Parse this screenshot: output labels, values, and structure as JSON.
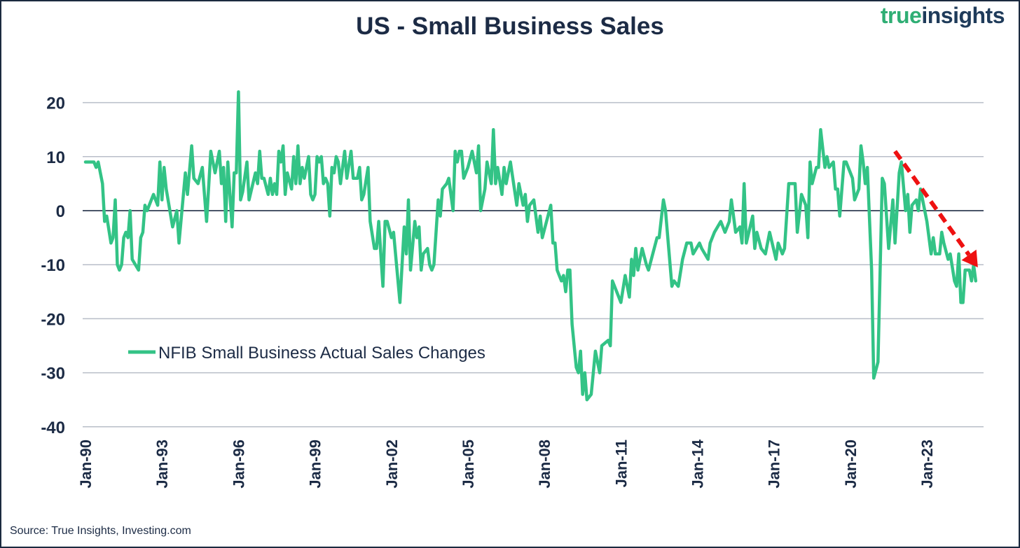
{
  "header": {
    "title": "US - Small Business Sales",
    "logo_part1": "true",
    "logo_part2": "insights"
  },
  "source": "Source: True Insights, Investing.com",
  "colors": {
    "line": "#33c386",
    "text": "#1c2b45",
    "grid": "#b8bec8",
    "zero": "#4a5568",
    "arrow": "#ee1111"
  },
  "chart_data": {
    "type": "line",
    "title": "US - Small Business Sales",
    "xlabel": "",
    "ylabel": "",
    "ylim": [
      -40,
      25
    ],
    "yticks": [
      20,
      10,
      0,
      -10,
      -20,
      -30,
      -40
    ],
    "ytick_labels": [
      "20",
      "10",
      "0",
      "-10",
      "-20",
      "-30",
      "-40"
    ],
    "x_unit": "months since Jan-1990",
    "xlim": [
      0,
      419
    ],
    "xticks": [
      0,
      36,
      72,
      108,
      144,
      180,
      216,
      252,
      288,
      324,
      360,
      396
    ],
    "xtick_labels": [
      "Jan-90",
      "Jan-93",
      "Jan-96",
      "Jan-99",
      "Jan-02",
      "Jan-05",
      "Jan-08",
      "Jan-11",
      "Jan-14",
      "Jan-17",
      "Jan-20",
      "Jan-23"
    ],
    "grid": true,
    "legend_position": "lower-left",
    "annotation": "red dashed downward trend arrow from 2021 peak to 2024",
    "series": [
      {
        "name": "NFIB Small Business Actual Sales Changes",
        "points": [
          [
            0,
            9
          ],
          [
            4,
            9
          ],
          [
            5,
            8
          ],
          [
            6,
            9
          ],
          [
            8,
            5
          ],
          [
            9,
            -2
          ],
          [
            10,
            -1
          ],
          [
            12,
            -6
          ],
          [
            13,
            -5
          ],
          [
            14,
            2
          ],
          [
            15,
            -10
          ],
          [
            16,
            -11
          ],
          [
            17,
            -10
          ],
          [
            18,
            -5
          ],
          [
            19,
            -4
          ],
          [
            20,
            -5
          ],
          [
            21,
            0
          ],
          [
            22,
            -9
          ],
          [
            25,
            -11
          ],
          [
            26,
            -5
          ],
          [
            27,
            -4
          ],
          [
            28,
            1
          ],
          [
            29,
            0
          ],
          [
            30,
            1
          ],
          [
            32,
            3
          ],
          [
            34,
            1
          ],
          [
            35,
            9
          ],
          [
            36,
            2
          ],
          [
            37,
            8
          ],
          [
            38,
            4
          ],
          [
            41,
            -3
          ],
          [
            43,
            0
          ],
          [
            44,
            -6
          ],
          [
            47,
            7
          ],
          [
            48,
            3
          ],
          [
            50,
            12
          ],
          [
            51,
            6
          ],
          [
            53,
            5
          ],
          [
            55,
            8
          ],
          [
            57,
            -2
          ],
          [
            59,
            11
          ],
          [
            61,
            7
          ],
          [
            63,
            11
          ],
          [
            64,
            5
          ],
          [
            65,
            8
          ],
          [
            66,
            -2
          ],
          [
            67,
            9
          ],
          [
            69,
            -3
          ],
          [
            70,
            7
          ],
          [
            71,
            7
          ],
          [
            72,
            22
          ],
          [
            73,
            2
          ],
          [
            74,
            3.5
          ],
          [
            76,
            9
          ],
          [
            77,
            2
          ],
          [
            80,
            7
          ],
          [
            81,
            5
          ],
          [
            82,
            11
          ],
          [
            83,
            6
          ],
          [
            84,
            6
          ],
          [
            86,
            3
          ],
          [
            87,
            6
          ],
          [
            88,
            3
          ],
          [
            89,
            5
          ],
          [
            90,
            3
          ],
          [
            91,
            11
          ],
          [
            92,
            9
          ],
          [
            93,
            12
          ],
          [
            94,
            3
          ],
          [
            95,
            7
          ],
          [
            97,
            4
          ],
          [
            98,
            10
          ],
          [
            99,
            5
          ],
          [
            100,
            12
          ],
          [
            101,
            5
          ],
          [
            102,
            8
          ],
          [
            103,
            6
          ],
          [
            105,
            10
          ],
          [
            106,
            3
          ],
          [
            107,
            2
          ],
          [
            108,
            3
          ],
          [
            109,
            10
          ],
          [
            110,
            9
          ],
          [
            111,
            10
          ],
          [
            112,
            5
          ],
          [
            113,
            6
          ],
          [
            114,
            5
          ],
          [
            115,
            -1
          ],
          [
            116,
            8
          ],
          [
            117,
            7
          ],
          [
            118,
            10
          ],
          [
            119,
            9
          ],
          [
            120,
            5
          ],
          [
            122,
            11
          ],
          [
            123,
            6
          ],
          [
            125,
            11
          ],
          [
            126,
            6
          ],
          [
            128,
            6
          ],
          [
            129,
            8
          ],
          [
            130,
            2
          ],
          [
            131,
            3
          ],
          [
            133,
            8
          ],
          [
            134,
            -2
          ],
          [
            136,
            -7
          ],
          [
            137,
            -7
          ],
          [
            138,
            -2
          ],
          [
            140,
            -14
          ],
          [
            141,
            -2
          ],
          [
            142,
            -2
          ],
          [
            144,
            -5
          ],
          [
            145,
            -4
          ],
          [
            148,
            -17
          ],
          [
            150,
            -3
          ],
          [
            151,
            -8
          ],
          [
            152,
            2
          ],
          [
            153,
            -11
          ],
          [
            155,
            -2
          ],
          [
            156,
            -5
          ],
          [
            157,
            -3
          ],
          [
            158,
            -11
          ],
          [
            159,
            -8
          ],
          [
            161,
            -7
          ],
          [
            162,
            -10
          ],
          [
            163,
            -11
          ],
          [
            164,
            -10
          ],
          [
            166,
            2
          ],
          [
            167,
            -1
          ],
          [
            168,
            4
          ],
          [
            170,
            5
          ],
          [
            171,
            6
          ],
          [
            173,
            0
          ],
          [
            174,
            11
          ],
          [
            175,
            9
          ],
          [
            176,
            11
          ],
          [
            177,
            11
          ],
          [
            178,
            6
          ],
          [
            180,
            8
          ],
          [
            182,
            11
          ],
          [
            184,
            7
          ],
          [
            185,
            12
          ],
          [
            186,
            0
          ],
          [
            188,
            4
          ],
          [
            189,
            9
          ],
          [
            191,
            5
          ],
          [
            192,
            15
          ],
          [
            193,
            5
          ],
          [
            194,
            8
          ],
          [
            196,
            3
          ],
          [
            197,
            8
          ],
          [
            198,
            5
          ],
          [
            200,
            9
          ],
          [
            203,
            1
          ],
          [
            204,
            5
          ],
          [
            206,
            1
          ],
          [
            207,
            3
          ],
          [
            208,
            -2
          ],
          [
            209,
            1
          ],
          [
            211,
            2
          ],
          [
            213,
            -4
          ],
          [
            214,
            -1
          ],
          [
            215,
            -5
          ],
          [
            219,
            1
          ],
          [
            220,
            -6
          ],
          [
            221,
            -6
          ],
          [
            222,
            -11
          ],
          [
            224,
            -13
          ],
          [
            225,
            -12
          ],
          [
            226,
            -15
          ],
          [
            227,
            -11
          ],
          [
            228,
            -11
          ],
          [
            229,
            -21
          ],
          [
            231,
            -29
          ],
          [
            232,
            -30
          ],
          [
            233,
            -26
          ],
          [
            234,
            -34
          ],
          [
            235,
            -30
          ],
          [
            236,
            -35
          ],
          [
            238,
            -34
          ],
          [
            240,
            -26
          ],
          [
            242,
            -30
          ],
          [
            243,
            -25
          ],
          [
            246,
            -24
          ],
          [
            247,
            -25
          ],
          [
            248,
            -13
          ],
          [
            250,
            -15
          ],
          [
            252,
            -17
          ],
          [
            254,
            -12
          ],
          [
            256,
            -16
          ],
          [
            257,
            -9
          ],
          [
            258,
            -12
          ],
          [
            259,
            -7
          ],
          [
            260,
            -11
          ],
          [
            262,
            -7
          ],
          [
            264,
            -10
          ],
          [
            265,
            -11
          ],
          [
            269,
            -5
          ],
          [
            270,
            -5
          ],
          [
            272,
            2
          ],
          [
            273,
            0
          ],
          [
            276,
            -14
          ],
          [
            277,
            -13
          ],
          [
            279,
            -14
          ],
          [
            281,
            -9
          ],
          [
            283,
            -6
          ],
          [
            285,
            -6
          ],
          [
            286,
            -8
          ],
          [
            289,
            -6
          ],
          [
            290,
            -7
          ],
          [
            293,
            -9
          ],
          [
            294,
            -6
          ],
          [
            296,
            -4
          ],
          [
            299,
            -2
          ],
          [
            301,
            -4
          ],
          [
            303,
            -2
          ],
          [
            304,
            2
          ],
          [
            306,
            -4
          ],
          [
            308,
            -3
          ],
          [
            309,
            -6
          ],
          [
            310,
            5
          ],
          [
            311,
            -6
          ],
          [
            314,
            -1
          ],
          [
            315,
            -7
          ],
          [
            316,
            -4
          ],
          [
            318,
            -7
          ],
          [
            320,
            -8
          ],
          [
            322,
            -4
          ],
          [
            325,
            -9
          ],
          [
            326,
            -6
          ],
          [
            328,
            -8
          ],
          [
            329,
            -7
          ],
          [
            331,
            5
          ],
          [
            334,
            5
          ],
          [
            335,
            -4
          ],
          [
            337,
            3
          ],
          [
            339,
            1
          ],
          [
            340,
            -5
          ],
          [
            341,
            9
          ],
          [
            342,
            5
          ],
          [
            344,
            8
          ],
          [
            345,
            8
          ],
          [
            346,
            15
          ],
          [
            348,
            8
          ],
          [
            349,
            10
          ],
          [
            350,
            8
          ],
          [
            352,
            9
          ],
          [
            353,
            4
          ],
          [
            354,
            4
          ],
          [
            355,
            -1
          ],
          [
            357,
            9
          ],
          [
            358,
            9
          ],
          [
            360,
            7
          ],
          [
            361,
            6
          ],
          [
            362,
            2
          ],
          [
            364,
            4
          ],
          [
            365,
            12
          ],
          [
            366,
            9
          ],
          [
            367,
            5
          ],
          [
            368,
            8
          ],
          [
            370,
            -11
          ],
          [
            371,
            -31
          ],
          [
            373,
            -28
          ],
          [
            375,
            6
          ],
          [
            376,
            5
          ],
          [
            378,
            -7
          ],
          [
            380,
            2
          ],
          [
            381,
            -6
          ],
          [
            383,
            7
          ],
          [
            384,
            9
          ],
          [
            386,
            0
          ],
          [
            387,
            3
          ],
          [
            388,
            -4
          ],
          [
            389,
            1
          ],
          [
            391,
            2
          ],
          [
            392,
            0
          ],
          [
            393,
            4
          ],
          [
            394,
            2
          ],
          [
            396,
            -2
          ],
          [
            398,
            -8
          ],
          [
            399,
            -5
          ],
          [
            400,
            -8
          ],
          [
            402,
            -8
          ],
          [
            403,
            -4
          ],
          [
            404,
            -6
          ],
          [
            406,
            -9
          ],
          [
            407,
            -8
          ],
          [
            409,
            -13
          ],
          [
            410,
            -14
          ],
          [
            411,
            -8
          ],
          [
            412,
            -17
          ],
          [
            413,
            -17
          ],
          [
            414,
            -11
          ],
          [
            416,
            -11
          ],
          [
            417,
            -13
          ],
          [
            418,
            -10
          ],
          [
            419,
            -13
          ]
        ]
      }
    ],
    "trend_arrow": {
      "from": [
        381,
        11
      ],
      "to": [
        420,
        -10.5
      ]
    }
  }
}
